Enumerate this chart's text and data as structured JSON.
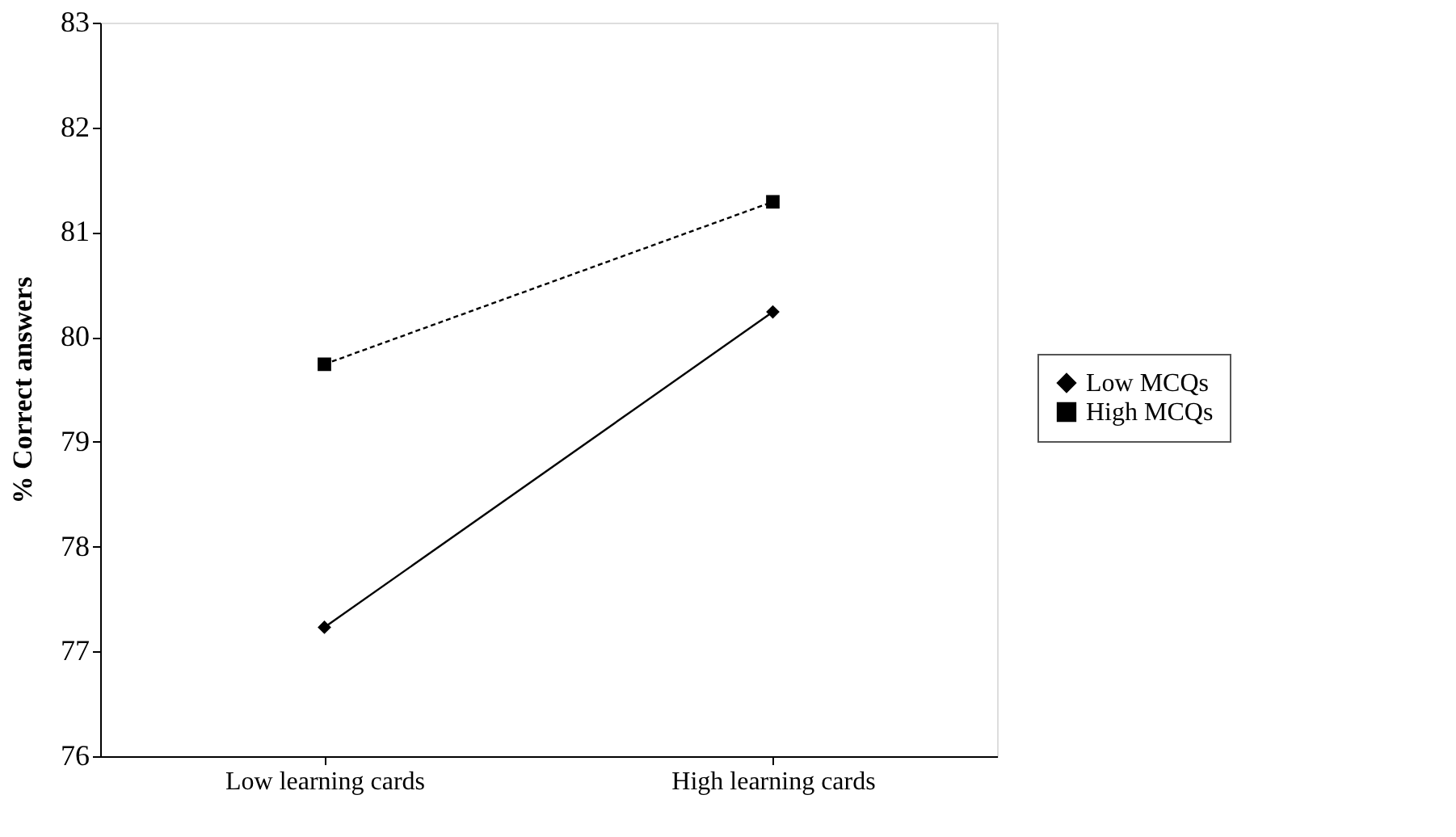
{
  "chart_data": {
    "type": "line",
    "ylabel": "% Correct answers",
    "categories": [
      "Low learning cards",
      "High learning cards"
    ],
    "series": [
      {
        "name": "Low MCQs",
        "color": "#000000",
        "values": [
          77.23,
          80.24
        ],
        "marker": "diamond",
        "line_style": "solid"
      },
      {
        "name": "High MCQs",
        "color": "#000000",
        "values": [
          79.74,
          81.29
        ],
        "marker": "square",
        "line_style": "dashed"
      }
    ],
    "ylim": [
      76,
      83
    ],
    "yticks": [
      76,
      77,
      78,
      79,
      80,
      81,
      82,
      83
    ],
    "grid": false,
    "legend": "right"
  }
}
